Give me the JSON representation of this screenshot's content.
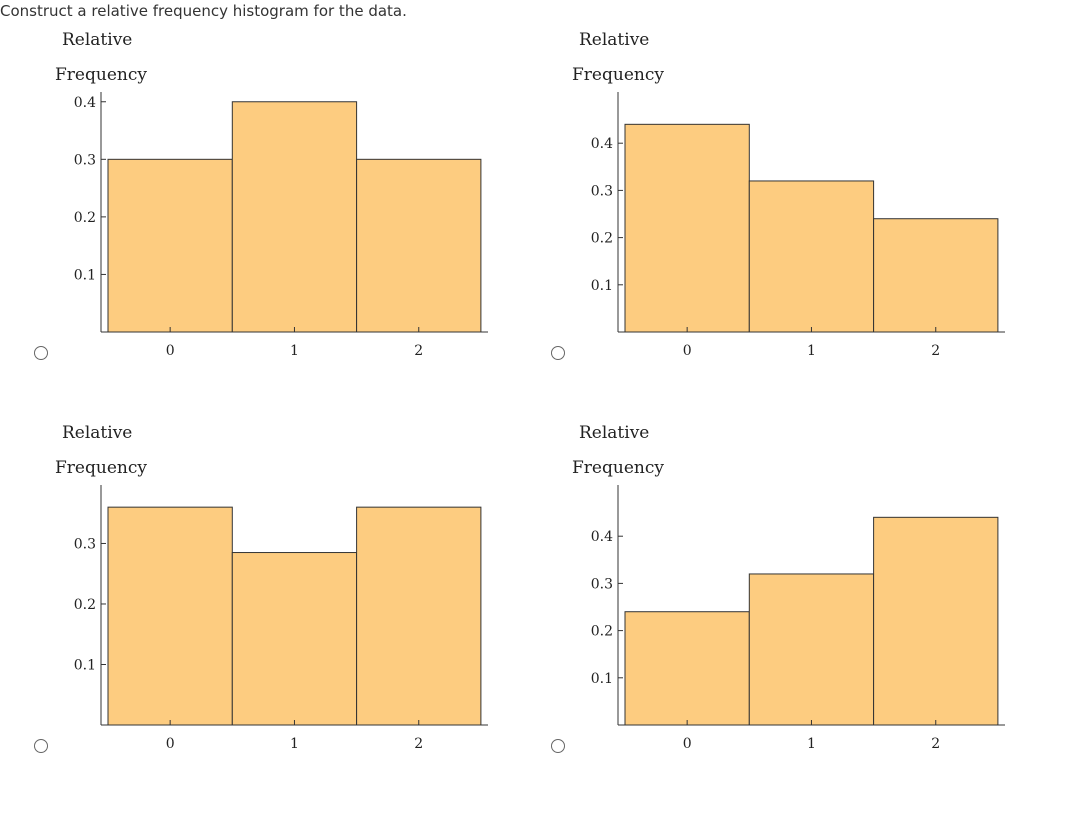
{
  "prompt": "Construct a relative frequency histogram for the data.",
  "colors": {
    "bar_fill": "#fdcc80",
    "bar_stroke": "#333333",
    "axis": "#333333"
  },
  "chart_data": [
    {
      "type": "bar",
      "ylabel_lines": [
        "Relative",
        "Frequency"
      ],
      "categories": [
        "0",
        "1",
        "2"
      ],
      "values": [
        0.3,
        0.4,
        0.3
      ],
      "yticks": [
        "0.1",
        "0.2",
        "0.3",
        "0.4"
      ],
      "ylim": [
        0,
        0.41
      ]
    },
    {
      "type": "bar",
      "ylabel_lines": [
        "Relative",
        "Frequency"
      ],
      "categories": [
        "0",
        "1",
        "2"
      ],
      "values": [
        0.44,
        0.32,
        0.24
      ],
      "yticks": [
        "0.1",
        "0.2",
        "0.3",
        "0.4"
      ],
      "ylim": [
        0,
        0.5
      ]
    },
    {
      "type": "bar",
      "ylabel_lines": [
        "Relative",
        "Frequency"
      ],
      "categories": [
        "0",
        "1",
        "2"
      ],
      "values": [
        0.36,
        0.285,
        0.36
      ],
      "yticks": [
        "0.1",
        "0.2",
        "0.3"
      ],
      "ylim": [
        0,
        0.39
      ]
    },
    {
      "type": "bar",
      "ylabel_lines": [
        "Relative",
        "Frequency"
      ],
      "categories": [
        "0",
        "1",
        "2"
      ],
      "values": [
        0.24,
        0.32,
        0.44
      ],
      "yticks": [
        "0.1",
        "0.2",
        "0.3",
        "0.4"
      ],
      "ylim": [
        0,
        0.5
      ]
    }
  ]
}
